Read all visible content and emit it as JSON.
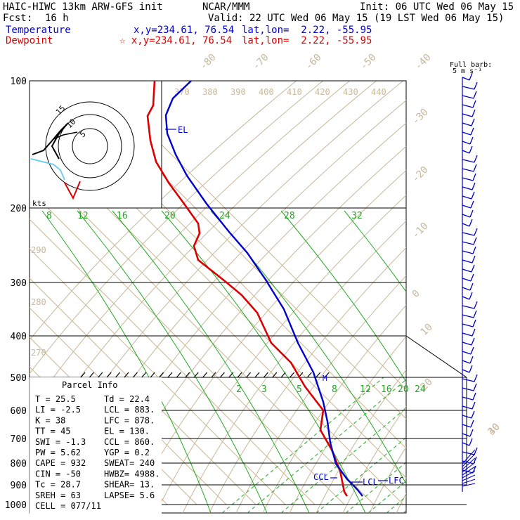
{
  "header": {
    "title": "HAIC-HIWC 13km ARW-GFS init",
    "org": "NCAR/MMM",
    "init": "Init: 06 UTC Wed 06 May 15",
    "fcst_label": "Fcst:",
    "fcst_value": "16 h",
    "valid": "Valid: 22 UTC Wed 06 May 15 (19 LST Wed 06 May 15)",
    "temp_label": "Temperature",
    "dew_label": "Dewpoint",
    "xy": "x,y=234.61, 76.54",
    "xy_star": "☆ x,y=234.61, 76.54",
    "latlon": "lat,lon=  2.22, -55.95"
  },
  "colors": {
    "temperature": "#dd0000",
    "dewpoint": "#0000cc",
    "isotherm": "#c8b89a",
    "mixing_ratio": "#22aa22",
    "parcel": "#0000cc"
  },
  "chart_data": {
    "type": "skew-t",
    "pressure_levels": [
      100,
      200,
      300,
      400,
      500,
      600,
      700,
      800,
      900,
      1000
    ],
    "pressure_labels": [
      "100",
      "200",
      "300",
      "400",
      "500",
      "600",
      "700",
      "800",
      "900",
      "1000"
    ],
    "isotherm_top_labels": [
      "-80",
      "-70",
      "-60",
      "-50",
      "-40"
    ],
    "isotherm_right_labels": [
      "-30",
      "-20",
      "-10",
      "0",
      "10",
      "20",
      "30",
      "40"
    ],
    "theta_labels": [
      "370",
      "380",
      "390",
      "400",
      "410",
      "420",
      "430",
      "440"
    ],
    "theta_left_labels": [
      "290",
      "280",
      "270"
    ],
    "mixing_ratio_labels_upper": [
      "8",
      "12",
      "16",
      "20",
      "24",
      "28",
      "32"
    ],
    "mixing_ratio_labels_lower": [
      "2",
      "3",
      "5",
      "8",
      "12",
      "16",
      "20",
      "24"
    ],
    "temperature_profile": [
      {
        "p": 100,
        "t": -82
      },
      {
        "p": 130,
        "t": -83
      },
      {
        "p": 160,
        "t": -80
      },
      {
        "p": 200,
        "t": -68
      },
      {
        "p": 250,
        "t": -55
      },
      {
        "p": 300,
        "t": -41
      },
      {
        "p": 350,
        "t": -30
      },
      {
        "p": 400,
        "t": -21
      },
      {
        "p": 500,
        "t": -6
      },
      {
        "p": 600,
        "t": 5
      },
      {
        "p": 700,
        "t": 10
      },
      {
        "p": 800,
        "t": 16
      },
      {
        "p": 900,
        "t": 21
      },
      {
        "p": 1000,
        "t": 25.5
      }
    ],
    "parcel_profile": [
      {
        "p": 130,
        "t": -75
      },
      {
        "p": 200,
        "t": -55
      },
      {
        "p": 300,
        "t": -34
      },
      {
        "p": 400,
        "t": -17
      },
      {
        "p": 500,
        "t": -3
      },
      {
        "p": 600,
        "t": 7
      },
      {
        "p": 700,
        "t": 13
      },
      {
        "p": 800,
        "t": 18
      },
      {
        "p": 900,
        "t": 22
      },
      {
        "p": 1000,
        "t": 25
      }
    ],
    "level_markers": [
      "EL",
      "CCL",
      "LCL",
      "LFC",
      "M"
    ],
    "hodograph_ring_labels": [
      "15",
      "10",
      "5"
    ],
    "hodograph_unit": "kts",
    "barb_legend": [
      "Full barb:",
      "5 m s⁻¹"
    ]
  },
  "parcel_info": {
    "title": "Parcel Info",
    "rows": [
      [
        "T  =    25.5",
        "Td =  22.4"
      ],
      [
        "LI =    -2.5",
        "LCL =  883."
      ],
      [
        "K  =      38",
        "LFC =  878."
      ],
      [
        "TT =      45",
        "EL  =  130."
      ],
      [
        "SWI =   -1.3",
        "CCL =  860."
      ],
      [
        "PW =    5.62",
        "YGP =   0.2"
      ],
      [
        "CAPE =   932",
        "SWEAT=  240"
      ],
      [
        "CIN =    -50",
        "HWBZ= 4988."
      ],
      [
        "Tc =    28.7",
        "SHEAR=  13."
      ],
      [
        "SREH =    63",
        "LAPSE=  5.6"
      ],
      [
        "CELL = 077/11",
        ""
      ]
    ]
  }
}
